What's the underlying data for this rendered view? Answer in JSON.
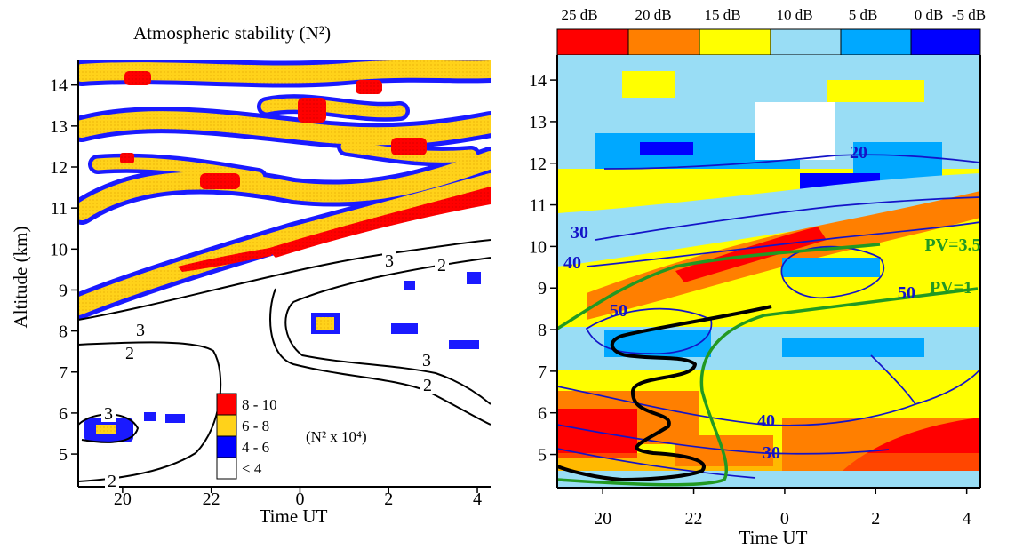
{
  "figure": {
    "left_title": "Atmospheric stability (N²)",
    "x_label": "Time UT",
    "y_label": "Altitude (km)"
  },
  "colors": {
    "red": "#ff0000",
    "orange": "#ff7f00",
    "yellow": "#ffff00",
    "light_blue": "#99ddf5",
    "sky_blue": "#00a8ff",
    "blue": "#0000ff",
    "dark_blue": "#1414c8",
    "contour_green": "#229922",
    "contour_black": "#000000"
  },
  "chart_data": [
    {
      "type": "heatmap",
      "panel": "left",
      "title": "Atmospheric stability (N²)",
      "xlabel": "Time UT",
      "ylabel": "Altitude (km)",
      "x_ticks": [
        "20",
        "22",
        "0",
        "2",
        "4"
      ],
      "y_ticks": [
        5,
        6,
        7,
        8,
        9,
        10,
        11,
        12,
        13,
        14
      ],
      "xlim_hours_ut": [
        19.0,
        28.3
      ],
      "ylim_km": [
        4.2,
        14.6
      ],
      "legend": {
        "units": "(N² x 10⁴)",
        "placement": "bottom-center",
        "classes": [
          {
            "label": "8 - 10",
            "color": "#ff0000"
          },
          {
            "label": "6 - 8",
            "color": "#ffd21a"
          },
          {
            "label": "4 - 6",
            "color": "#0000ff"
          },
          {
            "label": "< 4",
            "color": "#ffffff"
          }
        ]
      },
      "contours": [
        {
          "label": "3",
          "color": "#000000"
        },
        {
          "label": "2",
          "color": "#000000"
        },
        {
          "label": "3",
          "color": "#000000"
        },
        {
          "label": "2",
          "color": "#000000"
        },
        {
          "label": "3",
          "color": "#000000"
        },
        {
          "label": "2",
          "color": "#000000"
        },
        {
          "label": "3",
          "color": "#000000"
        },
        {
          "label": "2",
          "color": "#000000"
        }
      ]
    },
    {
      "type": "heatmap",
      "panel": "right",
      "xlabel": "Time UT",
      "x_ticks": [
        "20",
        "22",
        "0",
        "2",
        "4"
      ],
      "y_ticks": [
        5,
        6,
        7,
        8,
        9,
        10,
        11,
        12,
        13,
        14
      ],
      "xlim_hours_ut": [
        19.0,
        28.3
      ],
      "ylim_km": [
        4.2,
        14.6
      ],
      "colorbar": {
        "placement": "top",
        "labels": [
          "25 dB",
          "20 dB",
          "15 dB",
          "10 dB",
          "5 dB",
          "0 dB",
          "-5 dB"
        ],
        "colors": [
          "#ff0000",
          "#ff7f00",
          "#ffff00",
          "#99ddf5",
          "#00a8ff",
          "#0000ff"
        ]
      },
      "contours": [
        {
          "label": "20",
          "color": "#1414c8"
        },
        {
          "label": "30",
          "color": "#1414c8"
        },
        {
          "label": "40",
          "color": "#1414c8"
        },
        {
          "label": "50",
          "color": "#1414c8"
        },
        {
          "label": "50",
          "color": "#1414c8"
        },
        {
          "label": "40",
          "color": "#1414c8"
        },
        {
          "label": "30",
          "color": "#1414c8"
        },
        {
          "label": "PV=3.5",
          "color": "#229922"
        },
        {
          "label": "PV=1",
          "color": "#229922"
        }
      ]
    }
  ]
}
